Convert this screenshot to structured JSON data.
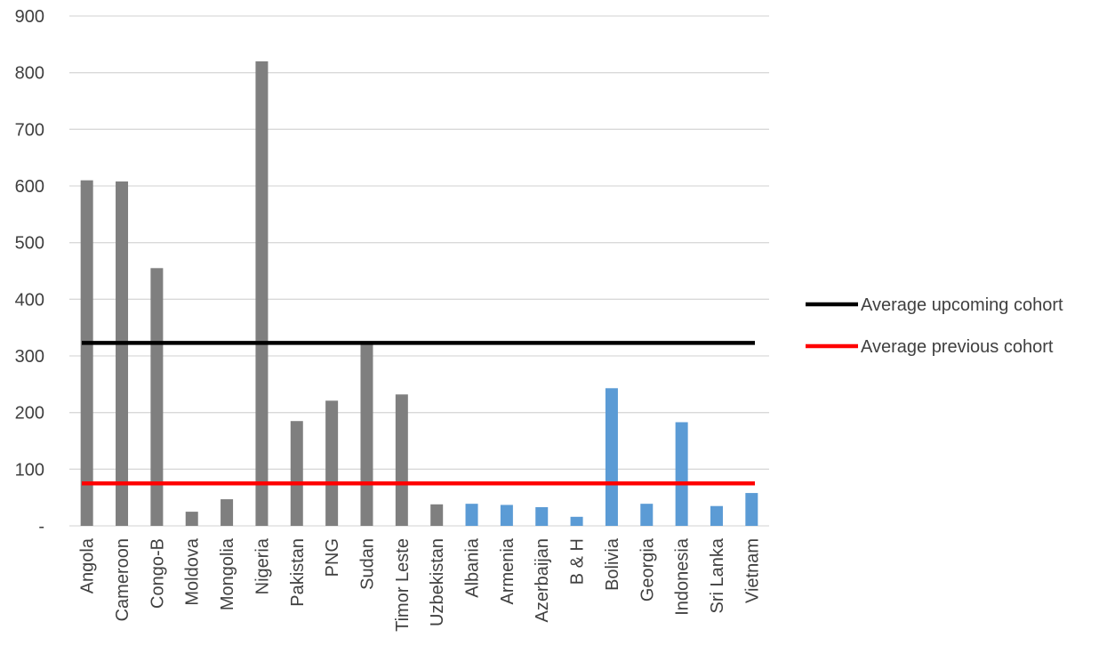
{
  "chart_data": {
    "type": "bar",
    "title": "",
    "xlabel": "",
    "ylabel": "",
    "ylim": [
      0,
      900
    ],
    "y_ticks": [
      {
        "value": 0,
        "label": "-"
      },
      {
        "value": 100,
        "label": "100"
      },
      {
        "value": 200,
        "label": "200"
      },
      {
        "value": 300,
        "label": "300"
      },
      {
        "value": 400,
        "label": "400"
      },
      {
        "value": 500,
        "label": "500"
      },
      {
        "value": 600,
        "label": "600"
      },
      {
        "value": 700,
        "label": "700"
      },
      {
        "value": 800,
        "label": "800"
      },
      {
        "value": 900,
        "label": "900"
      }
    ],
    "grid": true,
    "categories": [
      "Angola",
      "Cameroon",
      "Congo-B",
      "Moldova",
      "Mongolia",
      "Nigeria",
      "Pakistan",
      "PNG",
      "Sudan",
      "Timor Leste",
      "Uzbekistan",
      "Albania",
      "Armenia",
      "Azerbaijan",
      "B & H",
      "Bolivia",
      "Georgia",
      "Indonesia",
      "Sri Lanka",
      "Vietnam"
    ],
    "values": [
      610,
      608,
      455,
      25,
      47,
      820,
      185,
      221,
      325,
      232,
      38,
      39,
      37,
      33,
      16,
      243,
      39,
      183,
      35,
      58
    ],
    "bar_colors": [
      "#7f7f7f",
      "#7f7f7f",
      "#7f7f7f",
      "#7f7f7f",
      "#7f7f7f",
      "#7f7f7f",
      "#7f7f7f",
      "#7f7f7f",
      "#7f7f7f",
      "#7f7f7f",
      "#7f7f7f",
      "#5b9bd5",
      "#5b9bd5",
      "#5b9bd5",
      "#5b9bd5",
      "#5b9bd5",
      "#5b9bd5",
      "#5b9bd5",
      "#5b9bd5",
      "#5b9bd5"
    ],
    "reference_lines": [
      {
        "name": "Average upcoming cohort",
        "value": 323,
        "color": "#000000"
      },
      {
        "name": "Average previous cohort",
        "value": 75,
        "color": "#ff0000"
      }
    ],
    "legend_position": "right"
  }
}
